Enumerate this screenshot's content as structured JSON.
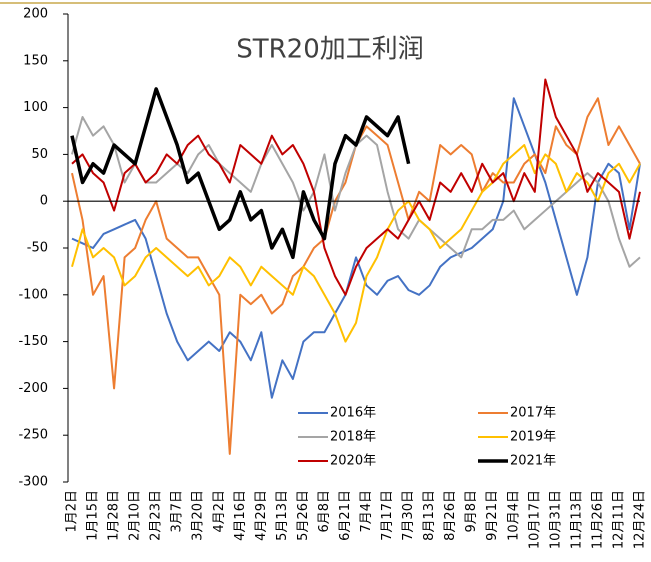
{
  "chart_data": {
    "type": "line",
    "title": "STR20加工利润",
    "categories": [
      "1月2日",
      null,
      "1月15日",
      null,
      "1月28日",
      null,
      "2月10日",
      null,
      "2月23日",
      null,
      "3月7日",
      null,
      "3月20日",
      null,
      "4月2日",
      null,
      "4月16日",
      null,
      "4月29日",
      null,
      "5月13日",
      null,
      "5月26日",
      null,
      "6月8日",
      null,
      "6月21日",
      null,
      "7月4日",
      null,
      "7月17日",
      null,
      "7月30日",
      null,
      "8月13日",
      null,
      "8月26日",
      null,
      "9月8日",
      null,
      "9月21日",
      null,
      "10月4日",
      null,
      "10月17日",
      null,
      "10月31日",
      null,
      "11月13日",
      null,
      "11月26日",
      null,
      "12月11日",
      null,
      "12月24日"
    ],
    "series": [
      {
        "name": "2016年",
        "color": "#4472c4",
        "values": [
          -40,
          -45,
          -50,
          -35,
          -30,
          -25,
          -20,
          -40,
          -80,
          -120,
          -150,
          -170,
          -160,
          -150,
          -160,
          -140,
          -150,
          -170,
          -140,
          -210,
          -170,
          -190,
          -150,
          -140,
          -140,
          -120,
          -100,
          -60,
          -90,
          -100,
          -85,
          -80,
          -95,
          -100,
          -90,
          -70,
          -60,
          -55,
          -50,
          -40,
          -30,
          0,
          110,
          80,
          50,
          20,
          -20,
          -60,
          -100,
          -60,
          20,
          40,
          30,
          -30,
          40
        ]
      },
      {
        "name": "2017年",
        "color": "#ed7d31",
        "values": [
          30,
          -20,
          -100,
          -80,
          -200,
          -60,
          -50,
          -20,
          0,
          -40,
          -50,
          -60,
          -60,
          -80,
          -100,
          -270,
          -100,
          -110,
          -100,
          -120,
          -110,
          -80,
          -70,
          -50,
          -40,
          0,
          20,
          60,
          80,
          70,
          60,
          20,
          -20,
          10,
          0,
          60,
          50,
          60,
          50,
          10,
          30,
          20,
          20,
          40,
          50,
          30,
          80,
          60,
          50,
          90,
          110,
          60,
          80,
          60,
          40
        ]
      },
      {
        "name": "2018年",
        "color": "#a5a5a5",
        "values": [
          50,
          90,
          70,
          80,
          60,
          20,
          40,
          20,
          20,
          30,
          40,
          30,
          50,
          60,
          40,
          30,
          20,
          10,
          40,
          60,
          40,
          20,
          -10,
          10,
          50,
          -10,
          30,
          60,
          70,
          60,
          10,
          -30,
          -40,
          -20,
          -30,
          -40,
          -50,
          -60,
          -30,
          -30,
          -20,
          -20,
          -10,
          -30,
          -20,
          -10,
          0,
          10,
          20,
          30,
          20,
          0,
          -40,
          -70,
          -60
        ]
      },
      {
        "name": "2019年",
        "color": "#ffc000",
        "values": [
          -70,
          -30,
          -60,
          -50,
          -60,
          -90,
          -80,
          -60,
          -50,
          -60,
          -70,
          -80,
          -70,
          -90,
          -80,
          -60,
          -70,
          -90,
          -70,
          -80,
          -90,
          -100,
          -70,
          -80,
          -100,
          -120,
          -150,
          -130,
          -80,
          -60,
          -30,
          -10,
          0,
          -20,
          -30,
          -50,
          -40,
          -30,
          -10,
          10,
          20,
          40,
          50,
          60,
          30,
          50,
          40,
          10,
          30,
          20,
          0,
          30,
          40,
          20,
          40
        ]
      },
      {
        "name": "2020年",
        "color": "#c00000",
        "values": [
          40,
          50,
          30,
          20,
          -10,
          30,
          40,
          20,
          30,
          50,
          40,
          60,
          70,
          50,
          40,
          20,
          60,
          50,
          40,
          70,
          50,
          60,
          40,
          10,
          -50,
          -80,
          -100,
          -70,
          -50,
          -40,
          -30,
          -40,
          -20,
          0,
          -20,
          20,
          10,
          30,
          10,
          40,
          20,
          30,
          0,
          30,
          10,
          130,
          90,
          70,
          50,
          10,
          30,
          20,
          10,
          -40,
          10
        ]
      },
      {
        "name": "2021年",
        "color": "#000000",
        "values": [
          70,
          20,
          40,
          30,
          60,
          50,
          40,
          80,
          120,
          90,
          60,
          20,
          30,
          0,
          -30,
          -20,
          10,
          -20,
          -10,
          -50,
          -30,
          -60,
          10,
          -20,
          -40,
          40,
          70,
          60,
          90,
          80,
          70,
          90,
          40,
          null,
          null,
          null,
          null,
          null,
          null,
          null,
          null,
          null,
          null,
          null,
          null,
          null,
          null,
          null,
          null,
          null,
          null,
          null,
          null,
          null,
          null
        ]
      }
    ],
    "ylim": [
      -300,
      200
    ],
    "yticks": [
      -300,
      -250,
      -200,
      -150,
      -100,
      -50,
      0,
      50,
      100,
      150,
      200
    ]
  }
}
